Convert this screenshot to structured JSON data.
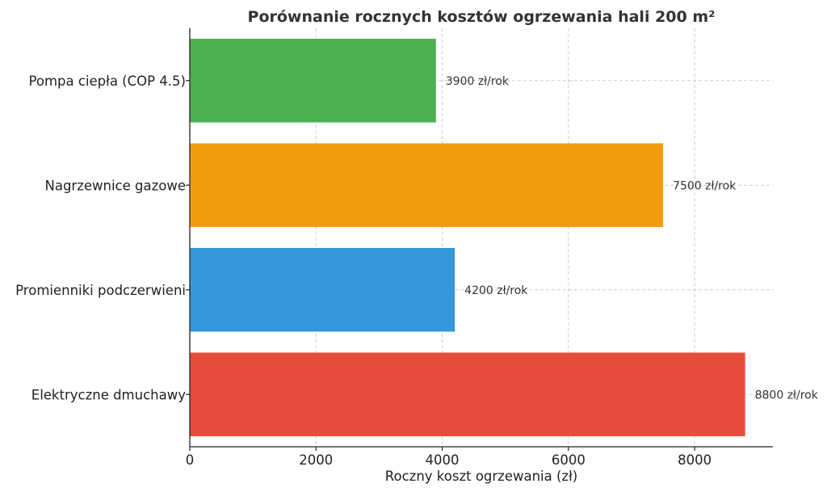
{
  "chart_data": {
    "type": "bar",
    "orientation": "horizontal",
    "title": "Porównanie rocznych kosztów ogrzewania hali 200 m²",
    "xlabel": "Roczny koszt ogrzewania (zł)",
    "ylabel": "",
    "categories": [
      "Pompa ciepła (COP 4.5)",
      "Nagrzewnice gazowe",
      "Promienniki podczerwieni",
      "Elektryczne dmuchawy"
    ],
    "values": [
      3900,
      7500,
      4200,
      8800
    ],
    "data_labels": [
      "3900 zł/rok",
      "7500 zł/rok",
      "4200 zł/rok",
      "8800 zł/rok"
    ],
    "colors": [
      "#4caf50",
      "#f39c12",
      "#3498db",
      "#e74c3c"
    ],
    "xticks": [
      0,
      2000,
      4000,
      6000,
      8000
    ],
    "xtick_labels": [
      "0",
      "2000",
      "4000",
      "6000",
      "8000"
    ],
    "xlim": [
      0,
      9240
    ],
    "grid": true
  }
}
